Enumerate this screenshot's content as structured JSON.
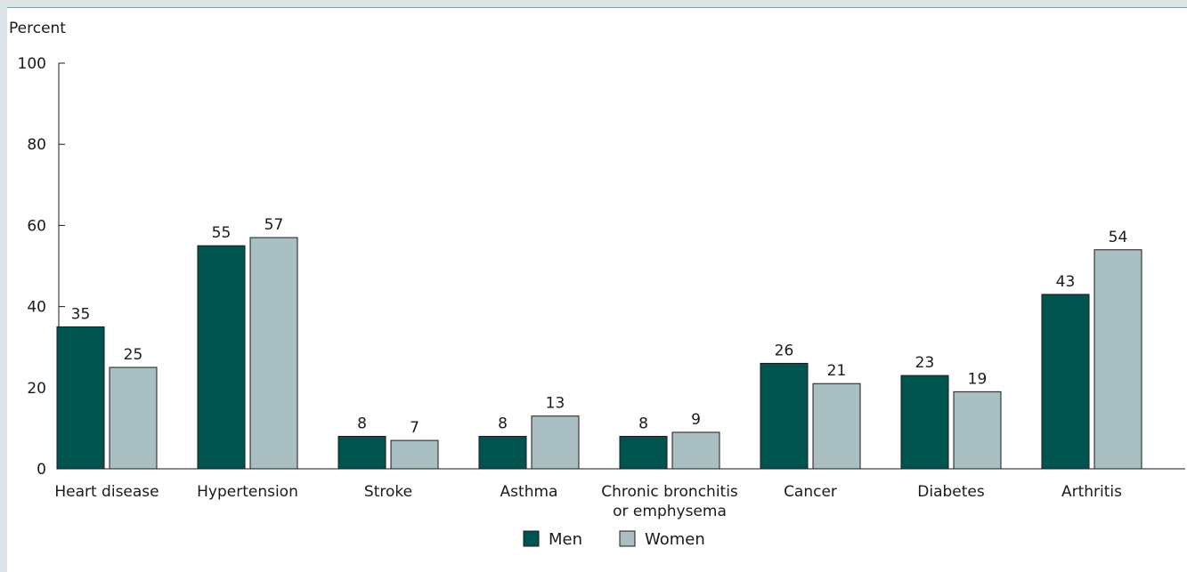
{
  "chart_data": {
    "type": "bar",
    "ylabel": "Percent",
    "ylim": [
      0,
      100
    ],
    "yticks": [
      0,
      20,
      40,
      60,
      80,
      100
    ],
    "categories": [
      [
        "Heart disease"
      ],
      [
        "Hypertension"
      ],
      [
        "Stroke"
      ],
      [
        "Asthma"
      ],
      [
        "Chronic bronchitis",
        "or emphysema"
      ],
      [
        "Cancer"
      ],
      [
        "Diabetes"
      ],
      [
        "Arthritis"
      ]
    ],
    "series": [
      {
        "name": "Men",
        "color": "#005450",
        "values": [
          35,
          55,
          8,
          8,
          8,
          26,
          23,
          43
        ]
      },
      {
        "name": "Women",
        "color": "#a9bfc2",
        "values": [
          25,
          57,
          7,
          13,
          9,
          21,
          19,
          54
        ]
      }
    ],
    "legend_position": "bottom-center",
    "grid": false
  }
}
